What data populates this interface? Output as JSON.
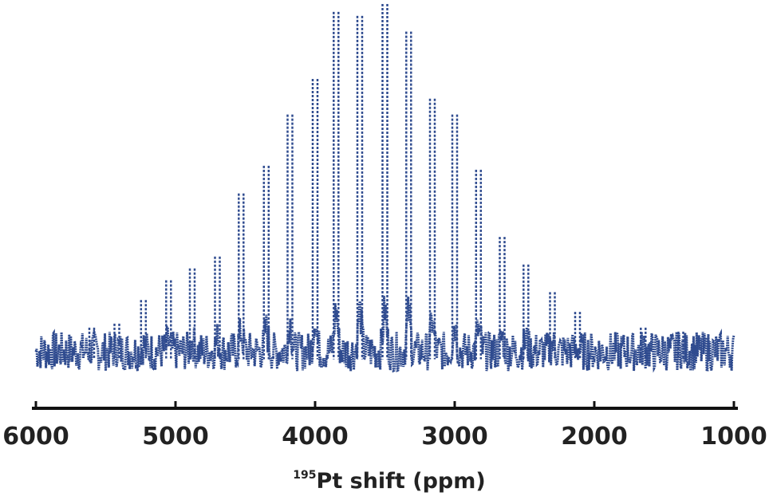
{
  "chart_data": {
    "type": "line",
    "title": "",
    "xlabel": "Pt shift (ppm)",
    "xlabel_isotope": "195",
    "ylabel": "",
    "xlim": [
      6000,
      1000
    ],
    "x_reversed": true,
    "ylim": [
      0,
      1
    ],
    "grid": false,
    "legend": "none",
    "xticks": [
      6000,
      5000,
      4000,
      3000,
      2000,
      1000
    ],
    "xtick_labels": [
      "6000",
      "5000",
      "4000",
      "3000",
      "2000",
      "1000"
    ],
    "series": [
      {
        "color": "#2f4b8f",
        "noise_center": 0.12,
        "noise_amplitude": 0.05,
        "peaks": [
          {
            "x": 4000,
            "y": 0.81
          },
          {
            "x": 3850,
            "y": 0.98
          },
          {
            "x": 3680,
            "y": 0.97
          },
          {
            "x": 3500,
            "y": 1.0
          },
          {
            "x": 3330,
            "y": 0.93
          },
          {
            "x": 3160,
            "y": 0.76
          },
          {
            "x": 3000,
            "y": 0.72
          },
          {
            "x": 2830,
            "y": 0.58
          },
          {
            "x": 2660,
            "y": 0.41
          },
          {
            "x": 2490,
            "y": 0.34
          },
          {
            "x": 2300,
            "y": 0.27
          },
          {
            "x": 2120,
            "y": 0.22
          },
          {
            "x": 4180,
            "y": 0.72
          },
          {
            "x": 4350,
            "y": 0.59
          },
          {
            "x": 4530,
            "y": 0.52
          },
          {
            "x": 4700,
            "y": 0.36
          },
          {
            "x": 4880,
            "y": 0.33
          },
          {
            "x": 5050,
            "y": 0.3
          },
          {
            "x": 5230,
            "y": 0.25
          },
          {
            "x": 5420,
            "y": 0.19
          },
          {
            "x": 5600,
            "y": 0.18
          },
          {
            "x": 1650,
            "y": 0.18
          },
          {
            "x": 1380,
            "y": 0.17
          }
        ]
      }
    ]
  }
}
